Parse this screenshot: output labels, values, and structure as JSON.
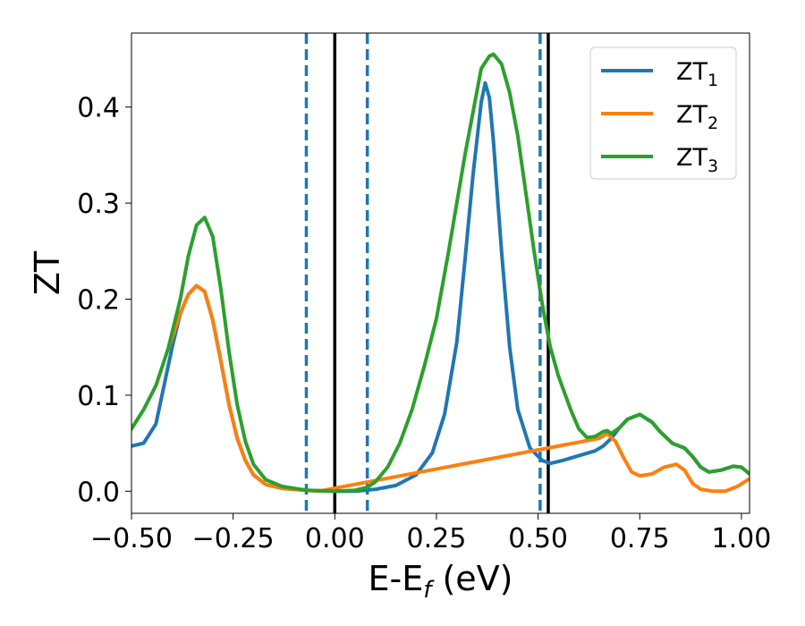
{
  "chart_data": {
    "type": "line",
    "xlabel": "E-E",
    "xlabel_sub": "f",
    "xlabel_unit": " (eV)",
    "ylabel": "ZT",
    "xlim": [
      -0.5,
      1.02
    ],
    "ylim": [
      -0.023,
      0.477
    ],
    "x_ticks": [
      -0.5,
      -0.25,
      0.0,
      0.25,
      0.5,
      0.75,
      1.0
    ],
    "x_tick_labels": [
      "−0.50",
      "−0.25",
      "0.00",
      "0.25",
      "0.50",
      "0.75",
      "1.00"
    ],
    "y_ticks": [
      0.0,
      0.1,
      0.2,
      0.3,
      0.4
    ],
    "y_tick_labels": [
      "0.0",
      "0.1",
      "0.2",
      "0.3",
      "0.4"
    ],
    "grid": false,
    "legend_position": "top-right",
    "vlines": [
      {
        "x": -0.07,
        "style": "dashed",
        "color": "#1f77b4"
      },
      {
        "x": 0.0,
        "style": "solid",
        "color": "#000000"
      },
      {
        "x": 0.08,
        "style": "dashed",
        "color": "#1f77b4"
      },
      {
        "x": 0.505,
        "style": "dashed",
        "color": "#1f77b4"
      },
      {
        "x": 0.525,
        "style": "solid",
        "color": "#000000"
      }
    ],
    "series": [
      {
        "name": "ZT",
        "sub": "1",
        "color": "#1f77b4",
        "points": [
          [
            -0.5,
            0.047
          ],
          [
            -0.47,
            0.05
          ],
          [
            -0.44,
            0.07
          ],
          [
            -0.42,
            0.11
          ],
          [
            -0.4,
            0.15
          ],
          [
            -0.38,
            0.185
          ],
          [
            -0.36,
            0.205
          ],
          [
            -0.34,
            0.214
          ],
          [
            -0.32,
            0.208
          ],
          [
            -0.3,
            0.178
          ],
          [
            -0.28,
            0.135
          ],
          [
            -0.26,
            0.09
          ],
          [
            -0.24,
            0.055
          ],
          [
            -0.22,
            0.032
          ],
          [
            -0.2,
            0.017
          ],
          [
            -0.17,
            0.007
          ],
          [
            -0.13,
            0.003
          ],
          [
            -0.07,
            0.001
          ],
          [
            0.0,
            0.0
          ],
          [
            0.05,
            0.0
          ],
          [
            0.1,
            0.002
          ],
          [
            0.15,
            0.006
          ],
          [
            0.2,
            0.017
          ],
          [
            0.24,
            0.04
          ],
          [
            0.27,
            0.08
          ],
          [
            0.3,
            0.155
          ],
          [
            0.32,
            0.24
          ],
          [
            0.34,
            0.33
          ],
          [
            0.36,
            0.405
          ],
          [
            0.37,
            0.425
          ],
          [
            0.38,
            0.41
          ],
          [
            0.39,
            0.365
          ],
          [
            0.41,
            0.25
          ],
          [
            0.43,
            0.15
          ],
          [
            0.45,
            0.085
          ],
          [
            0.48,
            0.045
          ],
          [
            0.51,
            0.032
          ],
          [
            0.53,
            0.029
          ],
          [
            0.56,
            0.032
          ],
          [
            0.6,
            0.037
          ],
          [
            0.64,
            0.042
          ],
          [
            0.66,
            0.047
          ],
          [
            0.68,
            0.055
          ],
          [
            0.7,
            0.066
          ],
          [
            0.72,
            0.075
          ],
          [
            0.75,
            0.08
          ],
          [
            0.78,
            0.072
          ],
          [
            0.8,
            0.062
          ],
          [
            0.83,
            0.05
          ],
          [
            0.86,
            0.045
          ],
          [
            0.88,
            0.036
          ],
          [
            0.9,
            0.025
          ],
          [
            0.92,
            0.02
          ],
          [
            0.95,
            0.022
          ],
          [
            0.98,
            0.026
          ],
          [
            1.0,
            0.025
          ],
          [
            1.02,
            0.018
          ]
        ]
      },
      {
        "name": "ZT",
        "sub": "2",
        "color": "#ff7f0e",
        "points": [
          [
            -0.41,
            0.148
          ],
          [
            -0.4,
            0.16
          ],
          [
            -0.38,
            0.185
          ],
          [
            -0.36,
            0.205
          ],
          [
            -0.34,
            0.214
          ],
          [
            -0.32,
            0.208
          ],
          [
            -0.3,
            0.178
          ],
          [
            -0.28,
            0.135
          ],
          [
            -0.26,
            0.09
          ],
          [
            -0.24,
            0.055
          ],
          [
            -0.22,
            0.032
          ],
          [
            -0.2,
            0.017
          ],
          [
            -0.17,
            0.007
          ],
          [
            -0.13,
            0.003
          ],
          [
            -0.07,
            0.001
          ],
          [
            -0.04,
            0.0
          ],
          [
            0.65,
            0.055
          ],
          [
            0.67,
            0.06
          ],
          [
            0.69,
            0.052
          ],
          [
            0.71,
            0.035
          ],
          [
            0.73,
            0.02
          ],
          [
            0.75,
            0.016
          ],
          [
            0.78,
            0.018
          ],
          [
            0.81,
            0.025
          ],
          [
            0.84,
            0.028
          ],
          [
            0.86,
            0.022
          ],
          [
            0.88,
            0.008
          ],
          [
            0.9,
            0.002
          ],
          [
            0.93,
            0.0
          ],
          [
            0.96,
            0.0
          ],
          [
            0.99,
            0.005
          ],
          [
            1.02,
            0.013
          ]
        ]
      },
      {
        "name": "ZT",
        "sub": "3",
        "color": "#2ca02c",
        "points": [
          [
            -0.5,
            0.065
          ],
          [
            -0.47,
            0.085
          ],
          [
            -0.44,
            0.11
          ],
          [
            -0.41,
            0.148
          ],
          [
            -0.38,
            0.2
          ],
          [
            -0.36,
            0.245
          ],
          [
            -0.34,
            0.277
          ],
          [
            -0.32,
            0.285
          ],
          [
            -0.3,
            0.265
          ],
          [
            -0.28,
            0.21
          ],
          [
            -0.26,
            0.145
          ],
          [
            -0.24,
            0.09
          ],
          [
            -0.22,
            0.052
          ],
          [
            -0.2,
            0.028
          ],
          [
            -0.17,
            0.012
          ],
          [
            -0.13,
            0.005
          ],
          [
            -0.07,
            0.001
          ],
          [
            0.0,
            0.0
          ],
          [
            0.05,
            0.001
          ],
          [
            0.08,
            0.004
          ],
          [
            0.1,
            0.01
          ],
          [
            0.13,
            0.025
          ],
          [
            0.16,
            0.05
          ],
          [
            0.19,
            0.085
          ],
          [
            0.22,
            0.13
          ],
          [
            0.25,
            0.18
          ],
          [
            0.28,
            0.25
          ],
          [
            0.3,
            0.3
          ],
          [
            0.32,
            0.35
          ],
          [
            0.34,
            0.395
          ],
          [
            0.36,
            0.44
          ],
          [
            0.38,
            0.453
          ],
          [
            0.39,
            0.455
          ],
          [
            0.41,
            0.445
          ],
          [
            0.43,
            0.415
          ],
          [
            0.45,
            0.37
          ],
          [
            0.47,
            0.31
          ],
          [
            0.49,
            0.25
          ],
          [
            0.51,
            0.195
          ],
          [
            0.53,
            0.15
          ],
          [
            0.55,
            0.12
          ],
          [
            0.58,
            0.085
          ],
          [
            0.6,
            0.065
          ],
          [
            0.62,
            0.056
          ],
          [
            0.64,
            0.057
          ],
          [
            0.66,
            0.062
          ],
          [
            0.67,
            0.063
          ],
          [
            0.68,
            0.06
          ],
          [
            0.7,
            0.066
          ],
          [
            0.72,
            0.075
          ],
          [
            0.75,
            0.08
          ],
          [
            0.78,
            0.072
          ],
          [
            0.8,
            0.062
          ],
          [
            0.83,
            0.05
          ],
          [
            0.86,
            0.045
          ],
          [
            0.88,
            0.036
          ],
          [
            0.9,
            0.025
          ],
          [
            0.92,
            0.02
          ],
          [
            0.95,
            0.022
          ],
          [
            0.98,
            0.026
          ],
          [
            1.0,
            0.025
          ],
          [
            1.02,
            0.018
          ]
        ]
      }
    ]
  }
}
